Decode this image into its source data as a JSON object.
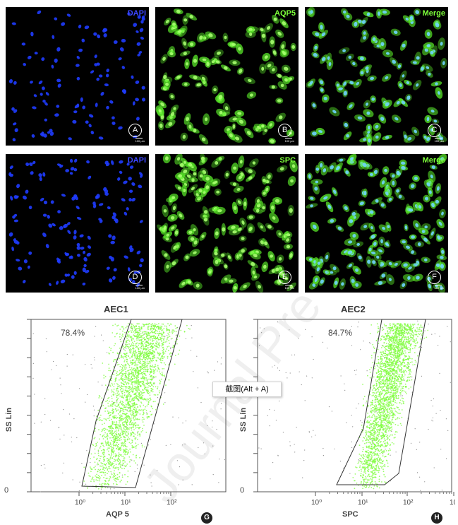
{
  "micrographs": [
    {
      "id": "A",
      "label": "DAPI",
      "label_color": "#3c46ff",
      "stain": "dapi",
      "density": "sparse"
    },
    {
      "id": "B",
      "label": "AQP5",
      "label_color": "#7dff3a",
      "stain": "green",
      "density": "sparse"
    },
    {
      "id": "C",
      "label": "Merge",
      "label_color": "#7dff3a",
      "stain": "merge",
      "density": "sparse"
    },
    {
      "id": "D",
      "label": "DAPI",
      "label_color": "#3c46ff",
      "stain": "dapi",
      "density": "dense"
    },
    {
      "id": "E",
      "label": "SPC",
      "label_color": "#7dff3a",
      "stain": "green",
      "density": "dense"
    },
    {
      "id": "F",
      "label": "Merge",
      "label_color": "#7dff3a",
      "stain": "merge",
      "density": "dense"
    }
  ],
  "scale_bar_text": "100 μm",
  "flow": [
    {
      "id": "G",
      "title": "AEC1",
      "percent": "78.4%",
      "xlabel": "AQP 5",
      "ylabel": "SS Lin",
      "zero": "0"
    },
    {
      "id": "H",
      "title": "AEC2",
      "percent": "84.7%",
      "xlabel": "SPC",
      "ylabel": "SS Lin",
      "zero": "0"
    }
  ],
  "tooltip": "截图(Alt + A)",
  "watermark": "Journal Pre",
  "colors": {
    "dapi": "#1f3cff",
    "green": "#5cf02a",
    "merge_nucleus": "#6fd6ff",
    "scatter": "#7cfc3a"
  }
}
